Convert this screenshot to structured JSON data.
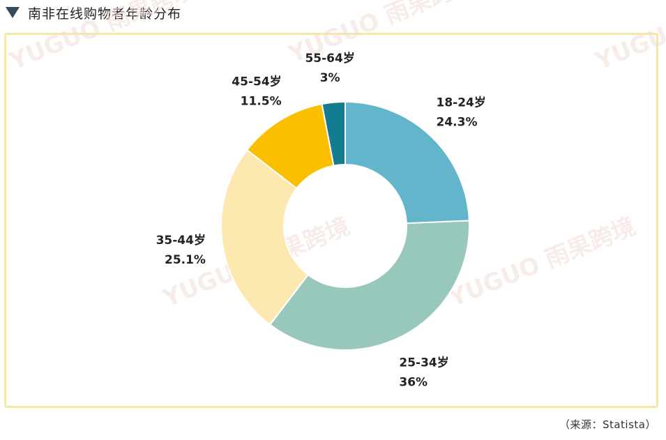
{
  "header": {
    "title": "南非在线购物者年龄分布"
  },
  "source": "（来源：Statista）",
  "watermark": {
    "brand": "YUGUO",
    "cn": "雨果跨境"
  },
  "chart_data": {
    "type": "pie",
    "title": "南非在线购物者年龄分布",
    "slices": [
      {
        "label": "18-24岁",
        "value": 24.3,
        "value_label": "24.3%",
        "color": "#63b5cb"
      },
      {
        "label": "25-34岁",
        "value": 36,
        "value_label": "36%",
        "color": "#98c8bc"
      },
      {
        "label": "35-44岁",
        "value": 25.1,
        "value_label": "25.1%",
        "color": "#fde9b0"
      },
      {
        "label": "45-54岁",
        "value": 11.5,
        "value_label": "11.5%",
        "color": "#fbbf00"
      },
      {
        "label": "55-64岁",
        "value": 3,
        "value_label": "3%",
        "color": "#157b8f"
      }
    ],
    "donut": true,
    "start": "12 o'clock",
    "direction": "clockwise"
  }
}
